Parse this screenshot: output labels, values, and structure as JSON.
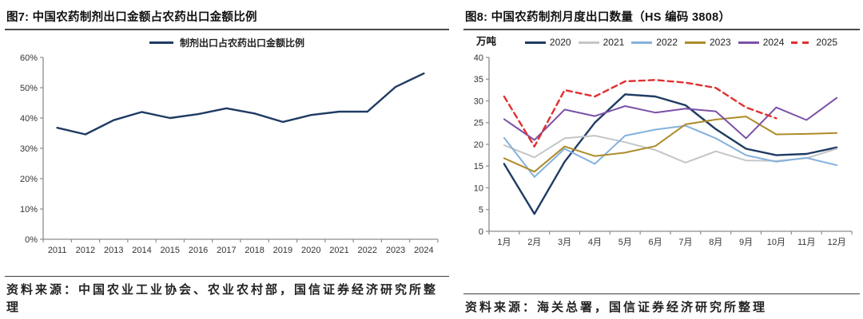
{
  "figures": [
    {
      "figure_title": "图7: 中国农药制剂出口金额占农药出口金额比例",
      "source_note": "资料来源：中国农业工业协会、农业农村部，国信证券经济研究所整理"
    },
    {
      "figure_title": "图8: 中国农药制剂月度出口数量（HS 编码 3808）",
      "unit_label": "万吨",
      "source_note": "资料来源：海关总署，国信证券经济研究所整理"
    }
  ],
  "colors": {
    "axis": "#8c8c8c",
    "tick_text": "#333333",
    "navy": "#1f3b63",
    "gray": "#c3c6c8",
    "light_blue": "#84b1dc",
    "olive": "#ad8c28",
    "purple": "#7c50a8",
    "red": "#e03030"
  },
  "chart_data": [
    {
      "type": "line",
      "title": "图7: 中国农药制剂出口金额占农药出口金额比例",
      "xlabel": "",
      "ylabel": "",
      "categories": [
        "2011",
        "2012",
        "2013",
        "2014",
        "2015",
        "2016",
        "2017",
        "2018",
        "2019",
        "2020",
        "2021",
        "2022",
        "2023",
        "2024"
      ],
      "series": [
        {
          "name": "制剂出口占农药出口金额比例",
          "color": "#1f3b63",
          "dashed": false,
          "values": [
            36.8,
            34.6,
            39.3,
            42.0,
            40.0,
            41.3,
            43.2,
            41.5,
            38.7,
            41.0,
            42.1,
            42.1,
            50.3,
            54.7
          ]
        }
      ],
      "ylim": [
        0,
        60
      ],
      "ytick_step": 10,
      "ytick_suffix": "%",
      "grid": false,
      "legend_position": "top-center"
    },
    {
      "type": "line",
      "title": "图8: 中国农药制剂月度出口数量（HS 编码 3808）",
      "xlabel": "",
      "ylabel": "万吨",
      "categories": [
        "1月",
        "2月",
        "3月",
        "4月",
        "5月",
        "6月",
        "7月",
        "8月",
        "9月",
        "10月",
        "11月",
        "12月"
      ],
      "series": [
        {
          "name": "2020",
          "color": "#1f3b63",
          "dashed": false,
          "values": [
            15.5,
            4.0,
            16.0,
            25.0,
            31.5,
            31.0,
            29.0,
            23.5,
            19.0,
            17.5,
            17.8,
            19.3
          ]
        },
        {
          "name": "2021",
          "color": "#c3c6c8",
          "dashed": false,
          "values": [
            19.8,
            17.0,
            21.4,
            22.0,
            20.5,
            18.7,
            15.8,
            18.4,
            16.3,
            16.2,
            16.8,
            19.0
          ]
        },
        {
          "name": "2022",
          "color": "#84b1dc",
          "dashed": false,
          "values": [
            21.5,
            12.5,
            19.0,
            15.5,
            22.0,
            23.4,
            24.3,
            21.4,
            17.5,
            16.0,
            16.9,
            15.2
          ]
        },
        {
          "name": "2023",
          "color": "#ad8c28",
          "dashed": false,
          "values": [
            16.8,
            13.7,
            19.5,
            17.3,
            18.1,
            19.6,
            24.6,
            25.7,
            26.4,
            22.3,
            22.4,
            22.6
          ]
        },
        {
          "name": "2024",
          "color": "#7c50a8",
          "dashed": false,
          "values": [
            25.8,
            21.0,
            28.0,
            26.5,
            28.8,
            27.3,
            28.2,
            27.6,
            21.4,
            28.5,
            25.6,
            30.7
          ]
        },
        {
          "name": "2025",
          "color": "#e03030",
          "dashed": true,
          "values": [
            31.0,
            19.5,
            32.5,
            31.0,
            34.5,
            34.8,
            34.2,
            33.0,
            28.5,
            26.0,
            null,
            null
          ]
        }
      ],
      "ylim": [
        0,
        40
      ],
      "ytick_step": 5,
      "ytick_suffix": "",
      "grid": false,
      "legend_position": "top"
    }
  ]
}
